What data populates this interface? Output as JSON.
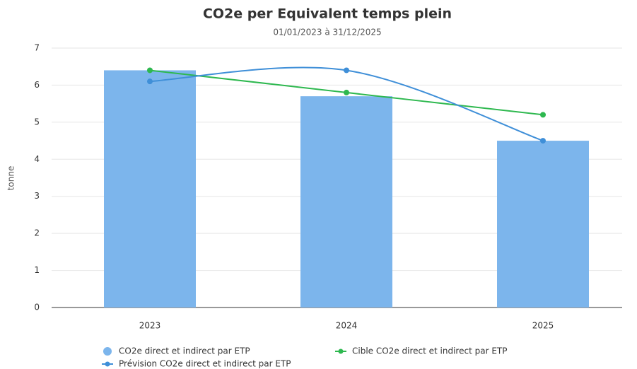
{
  "chart_data": {
    "type": "bar",
    "title": "CO2e per Equivalent temps plein",
    "subtitle": "01/01/2023 à 31/12/2025",
    "y_label": "tonne",
    "categories": [
      "2023",
      "2024",
      "2025"
    ],
    "series": [
      {
        "name": "CO2e direct et indirect par ETP",
        "type": "bar",
        "color": "#7cb5ec",
        "values": [
          6.4,
          5.7,
          4.5
        ]
      },
      {
        "name": "Cible CO2e direct et indirect par ETP",
        "type": "line",
        "color": "#2eb84f",
        "values": [
          6.4,
          5.8,
          5.2
        ]
      },
      {
        "name": "Prévision CO2e direct et indirect par ETP",
        "type": "line",
        "color": "#3f8fd8",
        "values": [
          6.1,
          6.4,
          4.5
        ]
      }
    ],
    "ylim": [
      0,
      7
    ],
    "yticks": [
      0,
      1,
      2,
      3,
      4,
      5,
      6,
      7
    ],
    "grid": true,
    "legend": "bottom"
  }
}
